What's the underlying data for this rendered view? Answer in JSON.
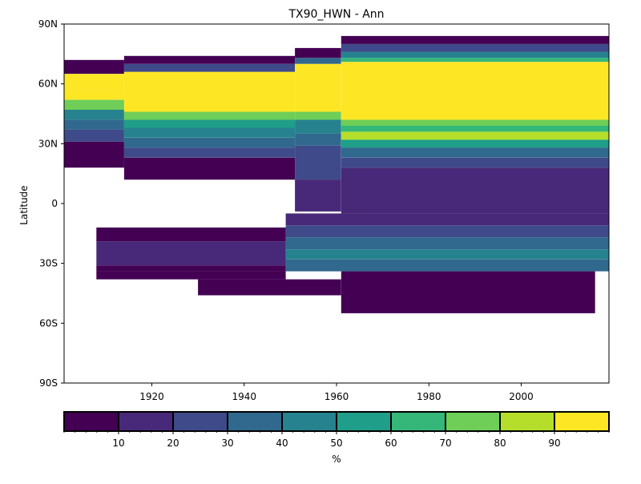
{
  "chart_data": {
    "type": "heatmap",
    "title": "TX90_HWN - Ann",
    "xlabel": "",
    "ylabel": "Latitude",
    "xlim": [
      1901,
      2019
    ],
    "ylim": [
      -90,
      90
    ],
    "x_ticks": [
      {
        "value": 1920,
        "label": "1920"
      },
      {
        "value": 1940,
        "label": "1940"
      },
      {
        "value": 1960,
        "label": "1960"
      },
      {
        "value": 1980,
        "label": "1980"
      },
      {
        "value": 2000,
        "label": "2000"
      }
    ],
    "y_ticks": [
      {
        "value": 90,
        "label": "90N"
      },
      {
        "value": 60,
        "label": "60N"
      },
      {
        "value": 30,
        "label": "30N"
      },
      {
        "value": 0,
        "label": "0"
      },
      {
        "value": -30,
        "label": "30S"
      },
      {
        "value": -60,
        "label": "60S"
      },
      {
        "value": -90,
        "label": "90S"
      }
    ],
    "colorbar": {
      "label": "%",
      "range": [
        0,
        100
      ],
      "bins": [
        {
          "from": 0,
          "to": 10,
          "color": "#440154"
        },
        {
          "from": 10,
          "to": 20,
          "color": "#482878"
        },
        {
          "from": 20,
          "to": 30,
          "color": "#3e4a89"
        },
        {
          "from": 30,
          "to": 40,
          "color": "#31688e"
        },
        {
          "from": 40,
          "to": 50,
          "color": "#26828e"
        },
        {
          "from": 50,
          "to": 60,
          "color": "#1f9e89"
        },
        {
          "from": 60,
          "to": 70,
          "color": "#35b779"
        },
        {
          "from": 70,
          "to": 80,
          "color": "#6ece58"
        },
        {
          "from": 80,
          "to": 90,
          "color": "#b5de2b"
        },
        {
          "from": 90,
          "to": 100,
          "color": "#fde725"
        }
      ],
      "tick_labels": [
        "10",
        "20",
        "30",
        "40",
        "50",
        "60",
        "70",
        "80",
        "90"
      ]
    },
    "regions": [
      {
        "x0": 1901,
        "x1": 1914,
        "lat_top": 72,
        "lat_bot": 18,
        "bands": [
          [
            72,
            65,
            0
          ],
          [
            65,
            57,
            90
          ],
          [
            57,
            52,
            90
          ],
          [
            52,
            47,
            70
          ],
          [
            47,
            42,
            40
          ],
          [
            42,
            37,
            30
          ],
          [
            37,
            31,
            20
          ],
          [
            31,
            18,
            0
          ]
        ]
      },
      {
        "x0": 1914,
        "x1": 1951,
        "lat_top": 74,
        "lat_bot": 12,
        "bands": [
          [
            74,
            70,
            0
          ],
          [
            70,
            66,
            20
          ],
          [
            66,
            46,
            90
          ],
          [
            46,
            42,
            70
          ],
          [
            42,
            38,
            50
          ],
          [
            38,
            33,
            40
          ],
          [
            33,
            28,
            30
          ],
          [
            28,
            23,
            20
          ],
          [
            23,
            12,
            0
          ]
        ]
      },
      {
        "x0": 1951,
        "x1": 1961,
        "lat_top": 78,
        "lat_bot": -4,
        "bands": [
          [
            78,
            73,
            0
          ],
          [
            73,
            70,
            30
          ],
          [
            70,
            46,
            90
          ],
          [
            46,
            42,
            70
          ],
          [
            42,
            35,
            40
          ],
          [
            35,
            29,
            30
          ],
          [
            29,
            12,
            20
          ],
          [
            12,
            -4,
            10
          ]
        ]
      },
      {
        "x0": 1961,
        "x1": 2019,
        "lat_top": 84,
        "lat_bot": -5,
        "bands": [
          [
            84,
            80,
            0
          ],
          [
            80,
            76,
            20
          ],
          [
            76,
            73,
            40
          ],
          [
            73,
            71,
            60
          ],
          [
            71,
            42,
            90
          ],
          [
            42,
            39,
            70
          ],
          [
            39,
            36,
            60
          ],
          [
            36,
            32,
            80
          ],
          [
            32,
            28,
            50
          ],
          [
            28,
            23,
            30
          ],
          [
            23,
            18,
            20
          ],
          [
            18,
            -5,
            10
          ]
        ]
      },
      {
        "x0": 1908,
        "x1": 1949,
        "lat_top": -12,
        "lat_bot": -38,
        "bands": [
          [
            -12,
            -19,
            0
          ],
          [
            -19,
            -31,
            10
          ],
          [
            -31,
            -34,
            0
          ],
          [
            -34,
            -38,
            0
          ]
        ]
      },
      {
        "x0": 1949,
        "x1": 2019,
        "lat_top": -5,
        "lat_bot": -34,
        "bands": [
          [
            -5,
            -11,
            10
          ],
          [
            -11,
            -17,
            20
          ],
          [
            -17,
            -23,
            30
          ],
          [
            -23,
            -28,
            40
          ],
          [
            -28,
            -34,
            30
          ]
        ]
      },
      {
        "x0": 1930,
        "x1": 1961,
        "lat_top": -38,
        "lat_bot": -46,
        "bands": [
          [
            -38,
            -46,
            0
          ]
        ]
      },
      {
        "x0": 1961,
        "x1": 2016,
        "lat_top": -34,
        "lat_bot": -55,
        "bands": [
          [
            -34,
            -55,
            0
          ]
        ]
      }
    ]
  }
}
